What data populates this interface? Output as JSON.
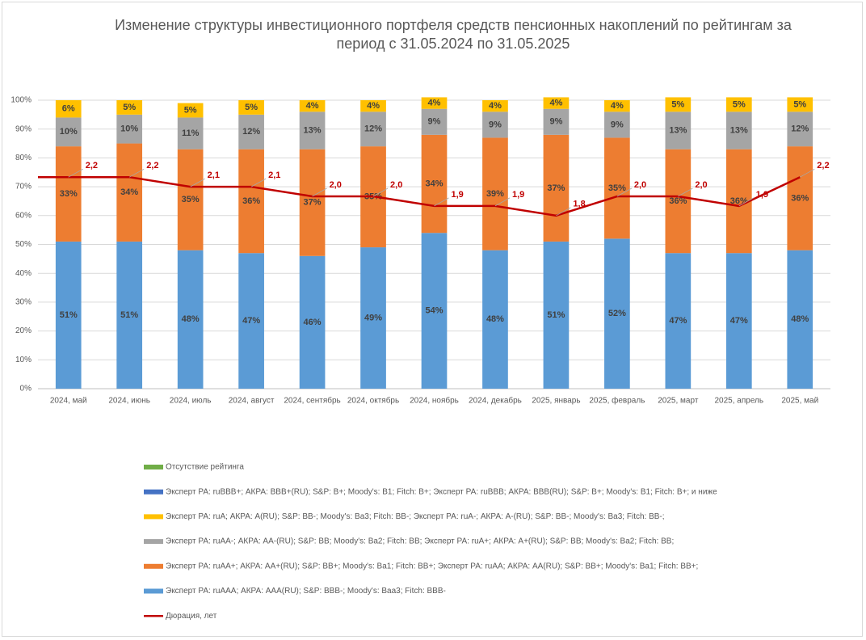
{
  "chart_data": {
    "type": "bar",
    "stacked": true,
    "title": "Изменение структуры инвестиционного портфеля средств пенсионных накоплений по рейтингам за период с 31.05.2024 по 31.05.2025",
    "categories": [
      "2024, май",
      "2024, июнь",
      "2024, июль",
      "2024, август",
      "2024, сентябрь",
      "2024, октябрь",
      "2024, ноябрь",
      "2024, декабрь",
      "2025, январь",
      "2025, февраль",
      "2025, март",
      "2025, апрель",
      "2025, май"
    ],
    "ylim": [
      0,
      100
    ],
    "yticks": [
      {
        "value": 0,
        "label": "0%"
      },
      {
        "value": 10,
        "label": "10%"
      },
      {
        "value": 20,
        "label": "20%"
      },
      {
        "value": 30,
        "label": "30%"
      },
      {
        "value": 40,
        "label": "40%"
      },
      {
        "value": 50,
        "label": "50%"
      },
      {
        "value": 60,
        "label": "60%"
      },
      {
        "value": 70,
        "label": "70%"
      },
      {
        "value": 80,
        "label": "80%"
      },
      {
        "value": 90,
        "label": "90%"
      },
      {
        "value": 100,
        "label": "100%"
      }
    ],
    "y2lim": [
      0,
      3
    ],
    "grid": true,
    "legend": "bottom",
    "series": [
      {
        "name": "Эксперт РА: ruAAA; АКРА: AAA(RU); S&P: BBB-; Moody's: Baa3; Fitch: BBB-",
        "color": "#5b9bd5",
        "values": [
          51,
          51,
          48,
          47,
          46,
          49,
          54,
          48,
          51,
          52,
          47,
          47,
          48
        ],
        "value_labels": [
          "51%",
          "51%",
          "48%",
          "47%",
          "46%",
          "49%",
          "54%",
          "48%",
          "51%",
          "52%",
          "47%",
          "47%",
          "48%"
        ]
      },
      {
        "name": "Эксперт РА: ruAA+; АКРА: AA+(RU); S&P: BB+; Moody's: Ba1; Fitch: BB+; Эксперт РА: ruAA; АКРА: AA(RU); S&P: BB+; Moody's: Ba1; Fitch: BB+;",
        "color": "#ed7d31",
        "values": [
          33,
          34,
          35,
          36,
          37,
          35,
          34,
          39,
          37,
          35,
          36,
          36,
          36
        ],
        "value_labels": [
          "33%",
          "34%",
          "35%",
          "36%",
          "37%",
          "35%",
          "34%",
          "39%",
          "37%",
          "35%",
          "36%",
          "36%",
          "36%"
        ]
      },
      {
        "name": "Эксперт РА: ruAA-; АКРА: AA-(RU); S&P: BB; Moody's: Ba2; Fitch: BB; Эксперт РА: ruA+; АКРА: A+(RU); S&P: BB; Moody's: Ba2; Fitch: BB;",
        "color": "#a5a5a5",
        "values": [
          10,
          10,
          11,
          12,
          13,
          12,
          9,
          9,
          9,
          9,
          13,
          13,
          12
        ],
        "value_labels": [
          "10%",
          "10%",
          "11%",
          "12%",
          "13%",
          "12%",
          "9%",
          "9%",
          "9%",
          "9%",
          "13%",
          "13%",
          "12%"
        ]
      },
      {
        "name": "Эксперт РА: ruA; АКРА: A(RU); S&P: BB-; Moody's: Ba3; Fitch: BB-; Эксперт РА: ruA-; АКРА: A-(RU); S&P: BB-; Moody's: Ba3; Fitch: BB-;",
        "color": "#ffc000",
        "values": [
          6,
          5,
          5,
          5,
          4,
          4,
          4,
          4,
          4,
          4,
          5,
          5,
          5
        ],
        "value_labels": [
          "6%",
          "5%",
          "5%",
          "5%",
          "4%",
          "4%",
          "4%",
          "4%",
          "4%",
          "4%",
          "5%",
          "5%",
          "5%"
        ]
      },
      {
        "name": "Эксперт РА: ruBBB+; АКРА: BBB+(RU); S&P: B+; Moody's: B1; Fitch: B+; Эксперт РА: ruBBB; АКРА: BBB(RU); S&P: B+; Moody's: B1; Fitch: B+; и ниже",
        "color": "#4472c4",
        "values": [
          0,
          0,
          0,
          0,
          0,
          0,
          0,
          0,
          0,
          0,
          0,
          0,
          0
        ]
      },
      {
        "name": "Отсутствие рейтинга",
        "color": "#70ad47",
        "values": [
          0,
          0,
          0,
          0,
          0,
          0,
          0,
          0,
          0,
          0,
          0,
          0,
          0
        ]
      },
      {
        "name": "Дюрация, лет",
        "color": "#c00000",
        "type": "line",
        "axis": "y2",
        "values": [
          2.2,
          2.2,
          2.1,
          2.1,
          2.0,
          2.0,
          1.9,
          1.9,
          1.8,
          2.0,
          2.0,
          1.9,
          2.2
        ],
        "value_labels": [
          "2,2",
          "2,2",
          "2,1",
          "2,1",
          "2,0",
          "2,0",
          "1,9",
          "1,9",
          "1,8",
          "2,0",
          "2,0",
          "1,9",
          "2,2"
        ]
      }
    ]
  }
}
